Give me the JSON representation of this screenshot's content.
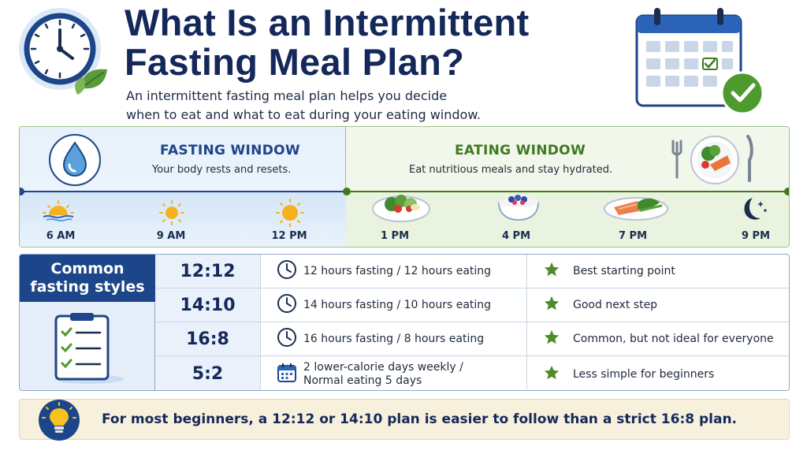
{
  "header": {
    "title_line1": "What Is an Intermittent",
    "title_line2": "Fasting Meal Plan?",
    "subtitle_line1": "An intermittent fasting meal plan helps you decide",
    "subtitle_line2": "when to eat and what to eat during your eating window."
  },
  "fasting_window": {
    "title": "FASTING WINDOW",
    "subtitle": "Your body rests and resets.",
    "color": "#1d4589",
    "times": [
      "6 AM",
      "9 AM",
      "12 PM"
    ]
  },
  "eating_window": {
    "title": "EATING WINDOW",
    "subtitle": "Eat nutritious meals and stay hydrated.",
    "color": "#3f7a1f",
    "times": [
      "1 PM",
      "4 PM",
      "7 PM",
      "9 PM"
    ]
  },
  "styles": {
    "heading_line1": "Common",
    "heading_line2": "fasting styles",
    "rows": [
      {
        "ratio": "12:12",
        "desc_line1": "12 hours fasting / 12 hours eating",
        "desc_line2": "",
        "icon": "clock-icon",
        "note": "Best starting point"
      },
      {
        "ratio": "14:10",
        "desc_line1": "14 hours fasting / 10 hours eating",
        "desc_line2": "",
        "icon": "clock-icon",
        "note": "Good next step"
      },
      {
        "ratio": "16:8",
        "desc_line1": "16 hours fasting / 8 hours eating",
        "desc_line2": "",
        "icon": "clock-icon",
        "note": "Common, but not ideal for everyone"
      },
      {
        "ratio": "5:2",
        "desc_line1": "2 lower-calorie days weekly /",
        "desc_line2": "Normal eating 5 days",
        "icon": "calendar-icon",
        "note": "Less simple for beginners"
      }
    ]
  },
  "footer": {
    "text": "For most beginners, a 12:12 or 14:10 plan is easier to follow than a strict 16:8 plan."
  },
  "colors": {
    "navy": "#14285a",
    "accent_blue": "#1d4589",
    "accent_green": "#3f7a1f",
    "star_green": "#4f8a2b"
  }
}
